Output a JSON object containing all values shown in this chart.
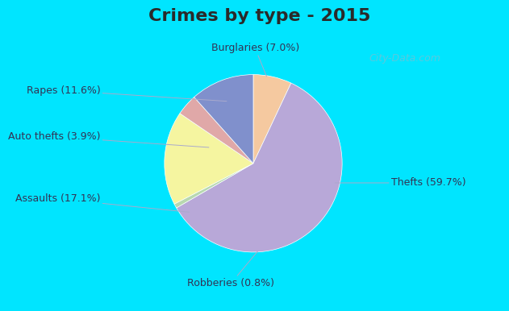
{
  "title": "Crimes by type - 2015",
  "title_fontsize": 16,
  "title_color": "#2a2a2a",
  "background_border": "#00e5ff",
  "background_chart": "#c8eee0",
  "label_fontsize": 9,
  "label_color": "#333355",
  "watermark": "City-Data.com",
  "labels_ordered": [
    "Burglaries",
    "Thefts",
    "Robberies",
    "Assaults",
    "Auto thefts",
    "Rapes"
  ],
  "values_ordered": [
    7.0,
    59.7,
    0.8,
    17.1,
    3.9,
    11.6
  ],
  "colors_ordered": [
    "#f5c9a0",
    "#b8a8d8",
    "#b8d8b0",
    "#f5f5a0",
    "#e0a8a8",
    "#8090cc"
  ],
  "annotations": [
    {
      "text": "Burglaries (7.0%)",
      "side": "top"
    },
    {
      "text": "Thefts (59.7%)",
      "side": "right"
    },
    {
      "text": "Robberies (0.8%)",
      "side": "bottom"
    },
    {
      "text": "Assaults (17.1%)",
      "side": "left"
    },
    {
      "text": "Auto thefts (3.9%)",
      "side": "left"
    },
    {
      "text": "Rapes (11.6%)",
      "side": "left"
    }
  ]
}
